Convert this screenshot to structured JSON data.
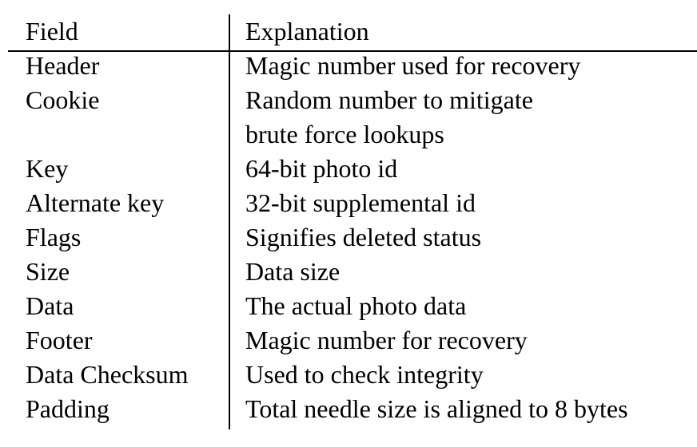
{
  "table": {
    "headers": [
      "Field",
      "Explanation"
    ],
    "rows": [
      {
        "field": "Header",
        "explanation": [
          "Magic number used for recovery"
        ]
      },
      {
        "field": "Cookie",
        "explanation": [
          "Random number to mitigate",
          "brute force lookups"
        ]
      },
      {
        "field": "Key",
        "explanation": [
          "64-bit photo id"
        ]
      },
      {
        "field": "Alternate key",
        "explanation": [
          "32-bit supplemental id"
        ]
      },
      {
        "field": "Flags",
        "explanation": [
          "Signifies deleted status"
        ]
      },
      {
        "field": "Size",
        "explanation": [
          "Data size"
        ]
      },
      {
        "field": "Data",
        "explanation": [
          "The actual photo data"
        ]
      },
      {
        "field": "Footer",
        "explanation": [
          "Magic number for recovery"
        ]
      },
      {
        "field": "Data Checksum",
        "explanation": [
          "Used to check integrity"
        ]
      },
      {
        "field": "Padding",
        "explanation": [
          "Total needle size is aligned to 8 bytes"
        ]
      }
    ]
  }
}
